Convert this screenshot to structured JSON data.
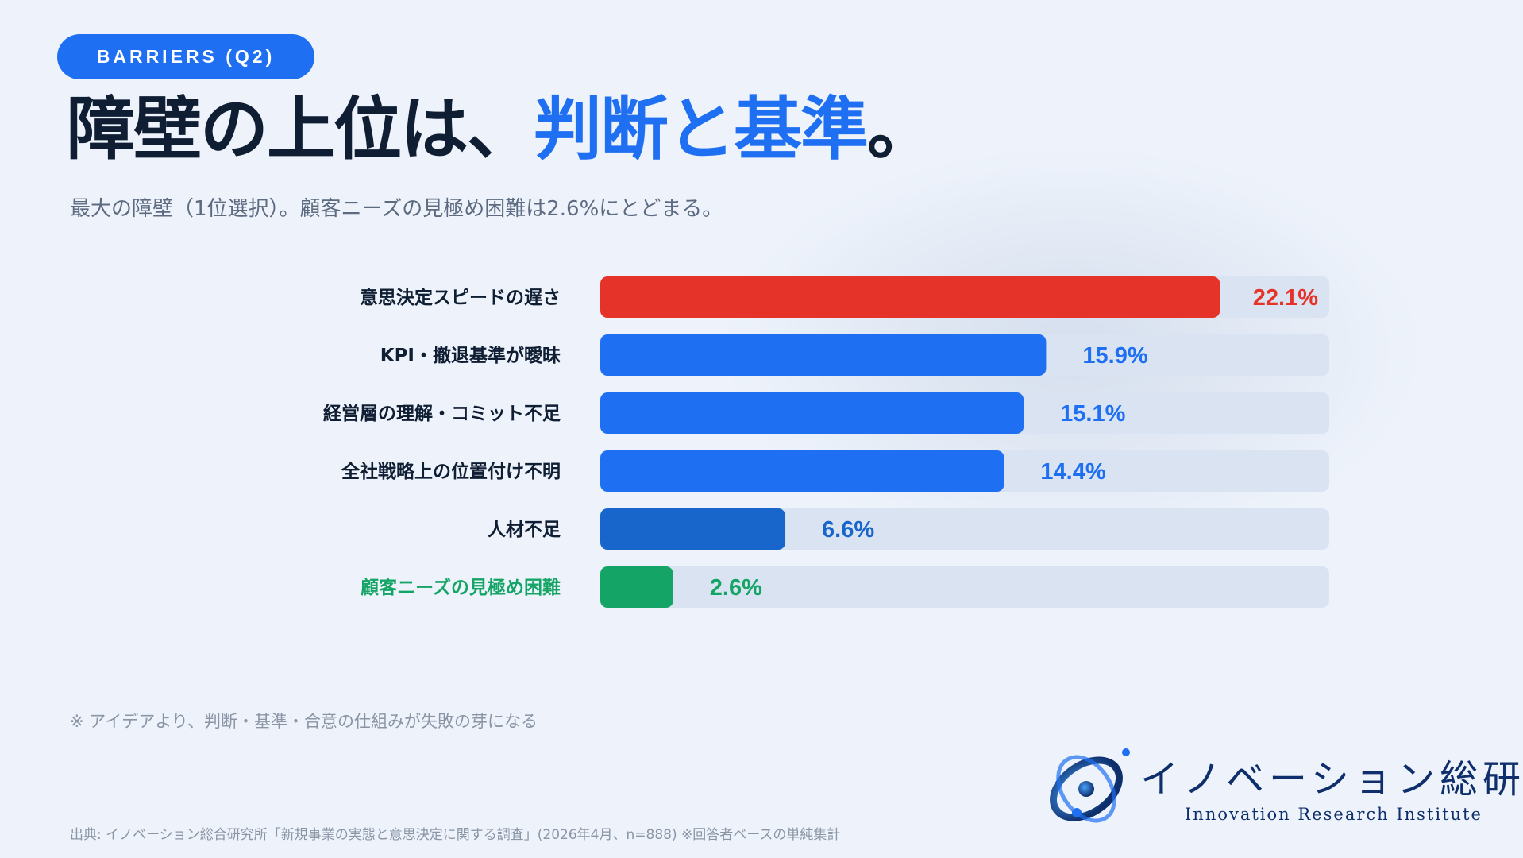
{
  "badge": "BARRIERS (Q2)",
  "title": {
    "main": "障壁の上位は、",
    "highlight": "判断と基準",
    "end": "。"
  },
  "subtitle": "最大の障壁（1位選択）。顧客ニーズの見極め困難は2.6%にとどまる。",
  "chart_data": {
    "type": "bar",
    "orientation": "horizontal",
    "categories": [
      "意思決定スピードの遅さ",
      "KPI・撤退基準が曖昧",
      "経営層の理解・コミット不足",
      "全社戦略上の位置付け不明",
      "人材不足",
      "顧客ニーズの見極め困難"
    ],
    "values": [
      22.1,
      15.9,
      15.1,
      14.4,
      6.6,
      2.6
    ],
    "value_labels": [
      "22.1%",
      "15.9%",
      "15.1%",
      "14.4%",
      "6.6%",
      "2.6%"
    ],
    "bar_colors": [
      "#e63329",
      "#1f6ff2",
      "#1f6ff2",
      "#1f6ff2",
      "#1866cc",
      "#14a566"
    ],
    "label_colors": [
      "#0f1e33",
      "#0f1e33",
      "#0f1e33",
      "#0f1e33",
      "#0f1e33",
      "#14a566"
    ],
    "value_label_colors": [
      "#e63329",
      "#1f6ff2",
      "#1f6ff2",
      "#1f6ff2",
      "#1866cc",
      "#14a566"
    ],
    "xlim": [
      0,
      26
    ],
    "track_color": "#d9e3f2",
    "grid": false,
    "legend": "none",
    "title": "",
    "xlabel": "",
    "ylabel": ""
  },
  "note": "※ アイデアより、判断・基準・合意の仕組みが失敗の芽になる",
  "source": "出典: イノベーション総合研究所「新規事業の実態と意思決定に関する調査」(2026年4月、n=888) ※回答者ベースの単純集計",
  "logo": {
    "name_jp": "イノベーション総研",
    "name_en": "Innovation Research Institute"
  },
  "colors": {
    "accent": "#1f6ff2",
    "alert": "#e63329",
    "positive": "#14a566",
    "logo": "#0e2f6b"
  }
}
